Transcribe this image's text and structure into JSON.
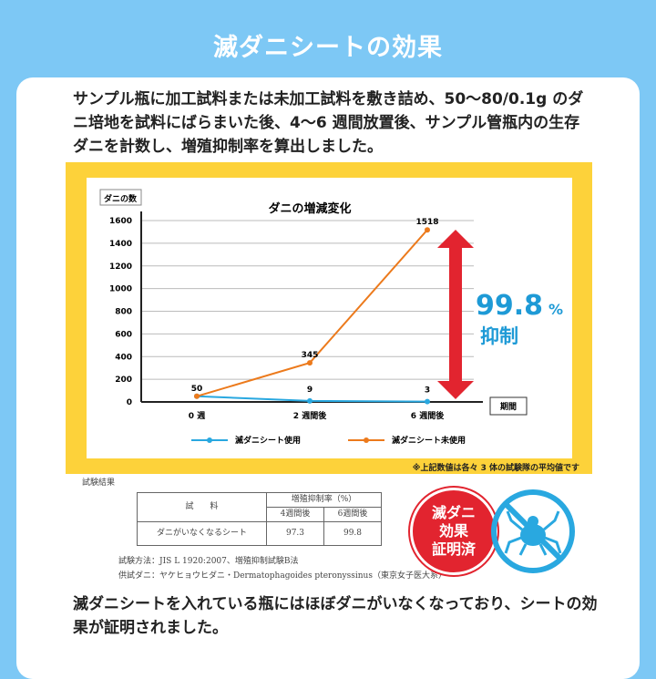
{
  "title": "滅ダニシートの効果",
  "intro": "サンプル瓶に加工試料または未加工試料を敷き詰め、50〜80/0.1g のダニ培地を試料にばらまいた後、4〜6 週間放置後、サンプル管瓶内の生存ダニを計数し、増殖抑制率を算出しました。",
  "chart_data": {
    "type": "line",
    "title": "ダニの増減変化",
    "ylabel": "ダニの数",
    "xlabel": "期間",
    "categories": [
      "0 週",
      "2 週間後",
      "6 週間後"
    ],
    "yticks": [
      0,
      200,
      400,
      600,
      800,
      1000,
      1200,
      1400,
      1600
    ],
    "ylim": [
      0,
      1600
    ],
    "grid": true,
    "legend": "bottom",
    "series": [
      {
        "name": "滅ダニシート使用",
        "values": [
          50,
          9,
          3
        ],
        "color": "#29a8e0"
      },
      {
        "name": "滅ダニシート未使用",
        "values": [
          50,
          345,
          1518
        ],
        "color": "#ec7a1c"
      }
    ],
    "annotation_value": "99.8",
    "annotation_unit": "%",
    "annotation_label": "抑制"
  },
  "note": "※上記数値は各々 3 体の試験隊の平均値です",
  "results": {
    "heading": "試験結果",
    "col_sample": "試　　料",
    "col_rate": "増殖抑制率（%）",
    "col_4w": "4週間後",
    "col_6w": "6週間後",
    "row_name": "ダニがいなくなるシート",
    "row_4w": "97.3",
    "row_6w": "99.8",
    "method": "試験方法：JIS L 1920:2007、増殖抑制試験B法",
    "mite": "供試ダニ：ヤケヒョウヒダニ・Dermatophagoides pteronyssinus（東京女子医大系）"
  },
  "badge": [
    "滅ダニ",
    "効果",
    "証明済"
  ],
  "outro": "滅ダニシートを入れている瓶にはほぼダニがいなくなっており、シートの効果が証明されました。"
}
